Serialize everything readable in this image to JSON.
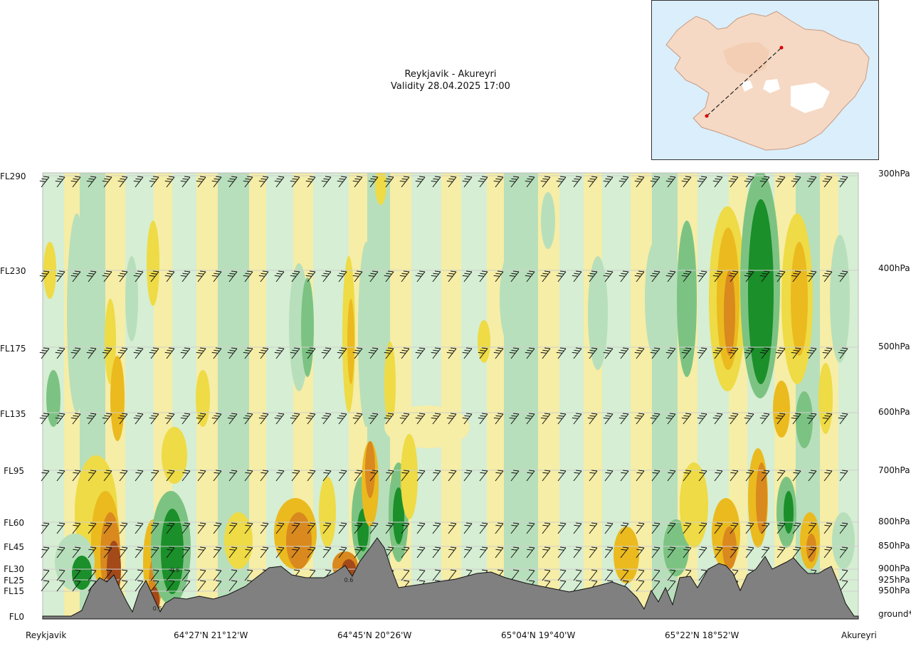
{
  "chart_data": {
    "type": "heatmap",
    "title": "Reykjavik - Akureyri",
    "subtitle": "Validity 28.04.2025 17:00",
    "y_left_labels": [
      "FL290",
      "FL230",
      "FL175",
      "FL135",
      "FL95",
      "FL60",
      "FL45",
      "FL30",
      "FL25",
      "FL15",
      "FL0"
    ],
    "y_right_labels": [
      "300hPa",
      "400hPa",
      "500hPa",
      "600hPa",
      "700hPa",
      "800hPa",
      "850hPa",
      "900hPa",
      "925hPa",
      "950hPa",
      "ground*"
    ],
    "x_labels": [
      "Reykjavik",
      "64°27'N 21°12'W",
      "64°45'N 20°26'W",
      "65°04'N 19°40'W",
      "65°22'N 18°52'W",
      "Akureyri"
    ],
    "annotations": [
      "0.6",
      "0.6",
      "0.6"
    ],
    "grid": true,
    "colors": {
      "strong_green": "#1b8f2a",
      "mid_green": "#7cc383",
      "light_green": "#b8dfbb",
      "pale_green": "#d6eed3",
      "pale": "#fbfbe2",
      "light_yellow": "#f6eda6",
      "yellow": "#eedb45",
      "gold": "#ebba1f",
      "orange": "#d9891e",
      "brown": "#a4491a",
      "terrain": "#808080",
      "map_sea": "#dbeefb",
      "map_land": "#f5d9c4"
    }
  }
}
